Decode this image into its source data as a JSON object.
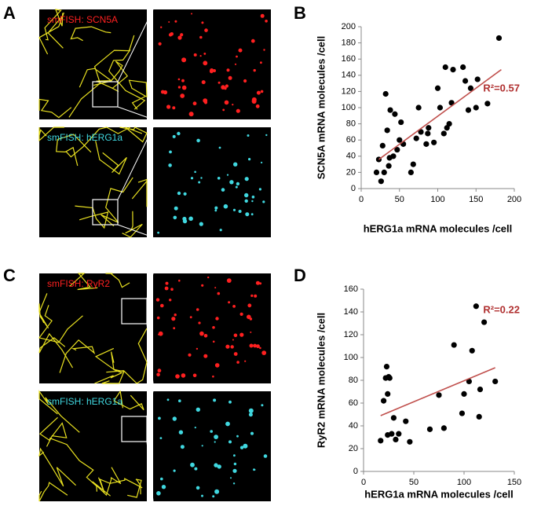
{
  "panel_labels": [
    "A",
    "B",
    "C",
    "D"
  ],
  "image_captions": [
    "smFISH: SCN5A",
    "smFISH: hERG1a",
    "smFISH: RyR2",
    "smFISH: hERG1a"
  ],
  "chart_data": [
    {
      "type": "scatter",
      "x_label": "hERG1a mRNA molecules /cell",
      "y_label": "SCN5A mRNA molecules /cell",
      "x": [
        20,
        23,
        26,
        28,
        30,
        32,
        34,
        36,
        37,
        38,
        42,
        44,
        47,
        50,
        52,
        55,
        65,
        68,
        72,
        75,
        78,
        85,
        87,
        88,
        95,
        100,
        103,
        108,
        110,
        112,
        115,
        118,
        120,
        133,
        136,
        140,
        143,
        150,
        152,
        165,
        180
      ],
      "values": [
        20,
        36,
        9,
        53,
        20,
        117,
        72,
        28,
        38,
        97,
        40,
        92,
        48,
        60,
        82,
        55,
        20,
        30,
        62,
        100,
        70,
        55,
        68,
        75,
        57,
        124,
        100,
        68,
        150,
        75,
        80,
        106,
        147,
        150,
        133,
        97,
        124,
        100,
        135,
        105,
        186
      ],
      "color": "#000000",
      "fit": {
        "x": [
          23,
          183
        ],
        "values": [
          36,
          147
        ],
        "color": "#c0504d"
      },
      "annotation": "R²=0.57",
      "xlim": [
        0,
        200
      ],
      "xticks": [
        0,
        50,
        100,
        150,
        200
      ],
      "ylim": [
        0,
        200
      ],
      "yticks": [
        0,
        20,
        40,
        60,
        80,
        100,
        120,
        140,
        160,
        180,
        200
      ]
    },
    {
      "type": "scatter",
      "x_label": "hERG1a mRNA molecules /cell",
      "y_label": "RyR2 mRNA molecules /cell",
      "x": [
        17,
        20,
        22,
        23,
        24,
        24,
        25,
        26,
        28,
        30,
        32,
        35,
        42,
        46,
        66,
        75,
        80,
        90,
        98,
        100,
        105,
        108,
        112,
        115,
        116,
        120,
        131
      ],
      "values": [
        27,
        62,
        82,
        92,
        32,
        68,
        83,
        82,
        33,
        47,
        28,
        33,
        44,
        26,
        37,
        67,
        38,
        111,
        51,
        68,
        79,
        106,
        145,
        48,
        72,
        131,
        79
      ],
      "color": "#000000",
      "fit": {
        "x": [
          17,
          131
        ],
        "values": [
          49,
          91
        ],
        "color": "#c0504d"
      },
      "annotation": "R²=0.22",
      "xlim": [
        0,
        150
      ],
      "xticks": [
        0,
        50,
        100,
        150
      ],
      "ylim": [
        0,
        160
      ],
      "yticks": [
        0,
        20,
        40,
        60,
        80,
        100,
        120,
        140,
        160
      ]
    }
  ]
}
